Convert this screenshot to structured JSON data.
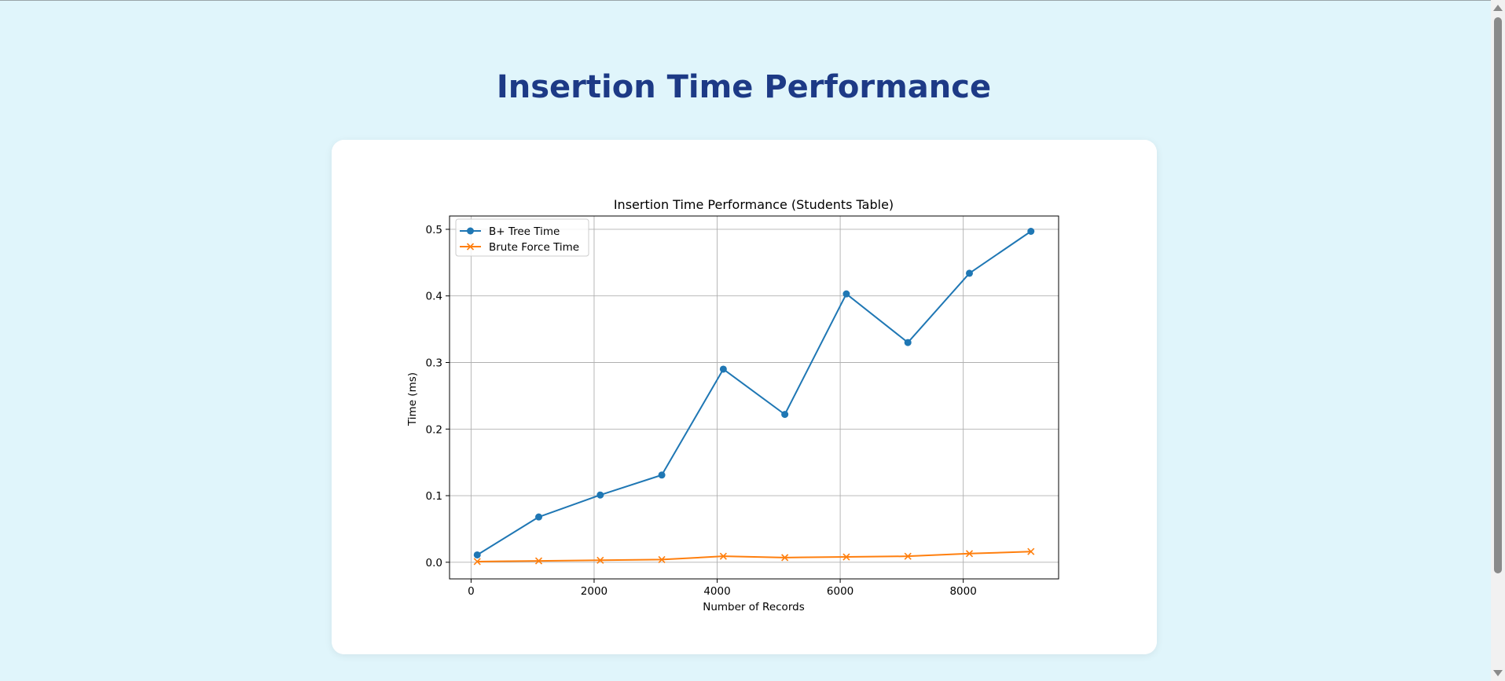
{
  "page": {
    "title": "Insertion Time Performance"
  },
  "chart_data": {
    "type": "line",
    "title": "Insertion Time Performance (Students Table)",
    "xlabel": "Number of Records",
    "ylabel": "Time (ms)",
    "xlim": [
      -350,
      9550
    ],
    "ylim": [
      -0.025,
      0.52
    ],
    "xticks": [
      0,
      2000,
      4000,
      6000,
      8000
    ],
    "yticks": [
      0.0,
      0.1,
      0.2,
      0.3,
      0.4,
      0.5
    ],
    "ytick_labels": [
      "0.0",
      "0.1",
      "0.2",
      "0.3",
      "0.4",
      "0.5"
    ],
    "grid": true,
    "legend": "upper-left",
    "x": [
      100,
      1100,
      2100,
      3100,
      4100,
      5100,
      6100,
      7100,
      8100,
      9100
    ],
    "series": [
      {
        "name": "B+ Tree Time",
        "marker": "circle",
        "color": "#1f77b4",
        "values": [
          0.011,
          0.068,
          0.101,
          0.131,
          0.29,
          0.222,
          0.403,
          0.33,
          0.434,
          0.497
        ]
      },
      {
        "name": "Brute Force Time",
        "marker": "x",
        "color": "#ff7f0e",
        "values": [
          0.001,
          0.002,
          0.003,
          0.004,
          0.009,
          0.007,
          0.008,
          0.009,
          0.013,
          0.016
        ]
      }
    ]
  }
}
